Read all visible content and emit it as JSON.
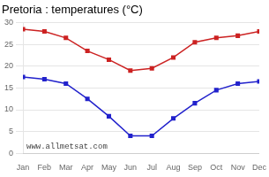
{
  "chart_data": {
    "type": "line",
    "title": "Pretoria : temperatures (°C)",
    "annotation": "www.allmetsat.com",
    "categories": [
      "Jan",
      "Feb",
      "Mar",
      "Apr",
      "May",
      "Jun",
      "Jul",
      "Aug",
      "Sep",
      "Oct",
      "Nov",
      "Dec"
    ],
    "series": [
      {
        "color": "#cc2222",
        "marker": "square",
        "values": [
          28.5,
          28.0,
          26.5,
          23.5,
          21.5,
          19.0,
          19.5,
          22.0,
          25.5,
          26.5,
          27.0,
          28.0
        ]
      },
      {
        "color": "#2222cc",
        "marker": "square",
        "values": [
          17.5,
          17.0,
          16.0,
          12.5,
          8.5,
          4.0,
          4.0,
          8.0,
          11.5,
          14.5,
          16.0,
          16.5
        ]
      }
    ],
    "ylim": [
      0,
      30
    ],
    "yticks": [
      0,
      5,
      10,
      15,
      20,
      25,
      30
    ],
    "grid": true
  }
}
